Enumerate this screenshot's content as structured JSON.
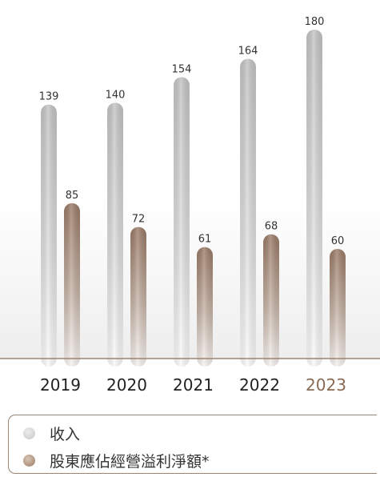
{
  "chart_data": {
    "type": "bar",
    "categories": [
      "2019",
      "2020",
      "2021",
      "2022",
      "2023"
    ],
    "highlight_category": "2023",
    "series": [
      {
        "name": "收入",
        "values": [
          139,
          140,
          154,
          164,
          180
        ],
        "color": "#c7c7c7"
      },
      {
        "name": "股東應佔經營溢利淨額*",
        "values": [
          85,
          72,
          61,
          68,
          60
        ],
        "color": "#9a7b62"
      }
    ],
    "ylim": [
      0,
      180
    ],
    "grid": false,
    "legend_position": "bottom"
  },
  "colors": {
    "highlight": "#8a6a52",
    "tick_text": "#222222",
    "baseline": "#9b8471"
  },
  "legend": [
    {
      "label": "收入",
      "swatch": "grey-circle"
    },
    {
      "label": "股東應佔經營溢利淨額*",
      "swatch": "brown-circle"
    }
  ]
}
